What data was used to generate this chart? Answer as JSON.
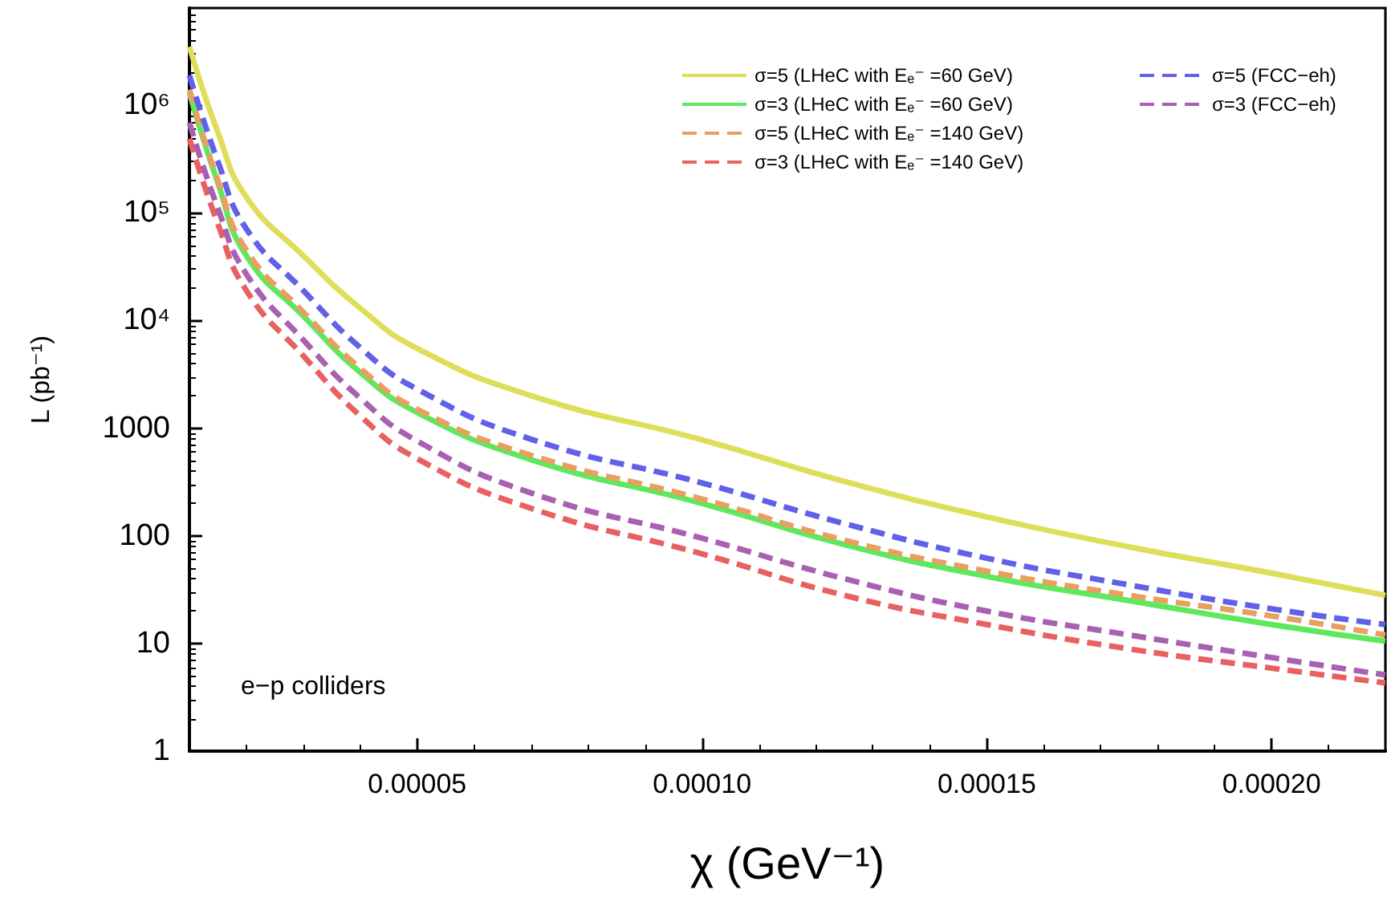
{
  "chart_data": {
    "type": "line",
    "xlabel": "χ (GeV⁻¹)",
    "ylabel": "L (pb⁻¹)",
    "annotations": [
      "e−p colliders"
    ],
    "x": [
      1e-05,
      1.5e-05,
      2e-05,
      3e-05,
      4e-05,
      5e-05,
      7e-05,
      0.0001,
      0.000125,
      0.00015,
      0.000175,
      0.0002,
      0.00022
    ],
    "series": [
      {
        "name": "σ=5 (LHeC with Eₑ⁻ =60 GeV)",
        "color": "#dede5a",
        "line_style": "solid",
        "values": [
          3500000,
          560000,
          140000,
          40000,
          13000,
          5500,
          2000,
          780,
          320,
          150,
          79,
          45,
          28
        ]
      },
      {
        "name": "σ=3 (LHeC with Eₑ⁻ =60 GeV)",
        "color": "#5ee85e",
        "line_style": "solid",
        "values": [
          1300000,
          190000,
          40000,
          11000,
          3300,
          1400,
          510,
          200,
          83,
          42,
          25,
          15,
          10.5
        ]
      },
      {
        "name": "σ=5 (LHeC with Eₑ⁻ =140 GeV)",
        "color": "#e8a060",
        "line_style": "dashed",
        "values": [
          1400000,
          200000,
          45000,
          12000,
          3600,
          1500,
          560,
          220,
          91,
          47,
          28,
          18,
          12
        ]
      },
      {
        "name": "σ=3 (LHeC with Eₑ⁻ =140 GeV)",
        "color": "#e86060",
        "line_style": "dashed",
        "values": [
          490000,
          79000,
          19000,
          4700,
          1300,
          520,
          180,
          68,
          28,
          15,
          8.9,
          5.9,
          4.3
        ]
      },
      {
        "name": "σ=5 (FCC−eh)",
        "color": "#6060e8",
        "line_style": "dashed",
        "values": [
          1900000,
          300000,
          71000,
          19000,
          5600,
          2300,
          790,
          310,
          130,
          62,
          35,
          21,
          15
        ]
      },
      {
        "name": "σ=3 (FCC−eh)",
        "color": "#a860b0",
        "line_style": "dashed",
        "values": [
          690000,
          110000,
          27000,
          6600,
          1900,
          760,
          250,
          95,
          40,
          20,
          12,
          7.4,
          5.1
        ]
      }
    ],
    "xlim": [
      1e-05,
      0.00022
    ],
    "xticks": [
      {
        "value": 5e-05,
        "label": "0.00005"
      },
      {
        "value": 0.0001,
        "label": "0.00010"
      },
      0.00015,
      {
        "value": 0.0002,
        "label": "0.00020"
      }
    ],
    "ylim": [
      1,
      8000000
    ],
    "yticks": [
      1,
      10,
      100,
      1000,
      {
        "value": 10000,
        "label": "10⁴"
      },
      {
        "value": 100000,
        "label": "10⁵"
      },
      {
        "value": 1000000,
        "label": "10⁶"
      }
    ],
    "log": "y",
    "grid": false,
    "legend": "top right",
    "marker": "none"
  }
}
